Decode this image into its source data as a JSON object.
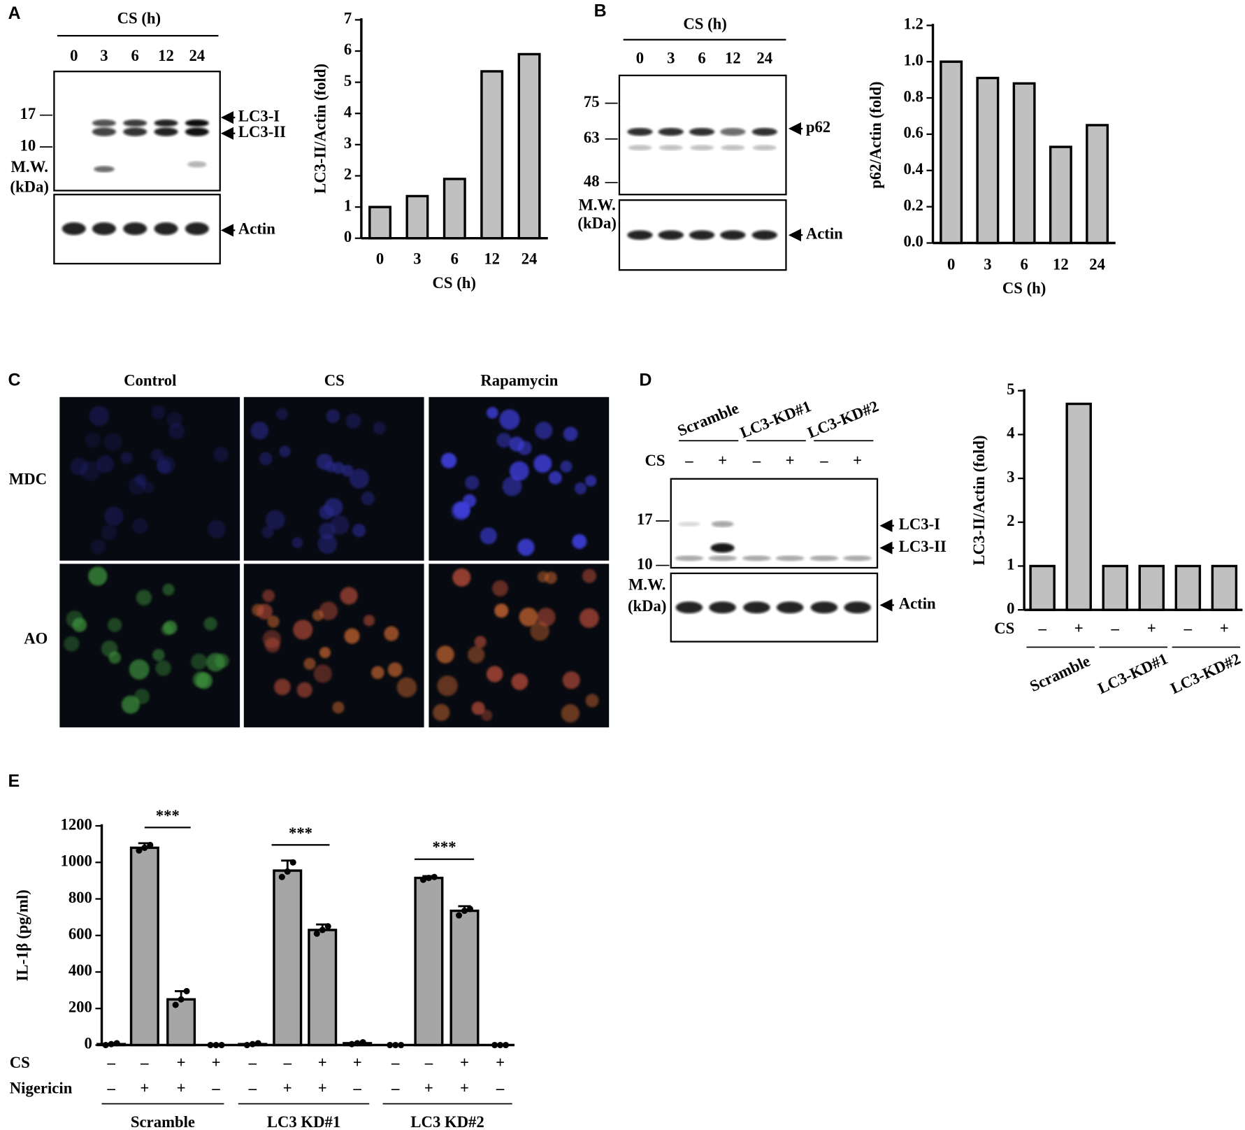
{
  "panels": {
    "a": "A",
    "b": "B",
    "c": "C",
    "d": "D",
    "e": "E"
  },
  "blot_a": {
    "header": "CS (h)",
    "lanes": [
      "0",
      "3",
      "6",
      "12",
      "24"
    ],
    "mw": [
      "17",
      "10"
    ],
    "mw_title": [
      "M.W.",
      "(kDa)"
    ],
    "bands": [
      "LC3-I",
      "LC3-II",
      "Actin"
    ]
  },
  "blot_b": {
    "header": "CS (h)",
    "lanes": [
      "0",
      "3",
      "6",
      "12",
      "24"
    ],
    "mw": [
      "75",
      "63",
      "48"
    ],
    "mw_title": [
      "M.W.",
      "(kDa)"
    ],
    "bands": [
      "p62",
      "Actin"
    ]
  },
  "images_c": {
    "columns": [
      "Control",
      "CS",
      "Rapamycin"
    ],
    "rows": [
      "MDC",
      "AO"
    ]
  },
  "blot_d": {
    "groups": [
      "Scramble",
      "LC3-KD#1",
      "LC3-KD#2"
    ],
    "row_label": "CS",
    "signs": [
      "–",
      "+",
      "–",
      "+",
      "–",
      "+"
    ],
    "mw": [
      "17",
      "10"
    ],
    "mw_title": [
      "M.W.",
      "(kDa)"
    ],
    "bands": [
      "LC3-I",
      "LC3-II",
      "Actin"
    ]
  },
  "chart_data": [
    {
      "type": "bar",
      "categories": [
        "0",
        "3",
        "6",
        "12",
        "24"
      ],
      "values": [
        1,
        1.35,
        1.9,
        5.35,
        5.9
      ],
      "color": "#c0c0c0",
      "ylim": [
        0,
        7
      ],
      "yticks": [
        0,
        1,
        2,
        3,
        4,
        5,
        6,
        7
      ],
      "y_label": "LC3-II/Actin (fold)",
      "x_label": "CS (h)"
    },
    {
      "type": "bar",
      "categories": [
        "0",
        "3",
        "6",
        "12",
        "24"
      ],
      "values": [
        1.0,
        0.91,
        0.88,
        0.53,
        0.65
      ],
      "color": "#c0c0c0",
      "ylim": [
        0,
        1.2
      ],
      "yticks": [
        {
          "value": 0,
          "label": "0.0"
        },
        0.2,
        0.4,
        0.6,
        0.8,
        {
          "value": 1,
          "label": "1.0"
        },
        1.2
      ],
      "y_label": "p62/Actin (fold)",
      "x_label": "CS (h)"
    },
    {
      "type": "bar",
      "categories": [
        "–",
        "+",
        "–",
        "+",
        "–",
        "+"
      ],
      "values": [
        1,
        4.7,
        1,
        1,
        1,
        1
      ],
      "color": "#c0c0c0",
      "ylim": [
        0,
        5
      ],
      "yticks": [
        0,
        1,
        2,
        3,
        4,
        5
      ],
      "y_label": "LC3-II/Actin (fold)",
      "row_label": "CS",
      "groups": [
        "Scramble",
        "LC3-KD#1",
        "LC3-KD#2"
      ]
    },
    {
      "type": "bar",
      "categories": [
        null,
        null,
        null,
        null,
        null,
        null,
        null,
        null,
        null,
        null,
        null,
        null
      ],
      "values": [
        5,
        1080,
        250,
        0,
        5,
        955,
        630,
        10,
        0,
        915,
        735,
        0
      ],
      "errors": [
        0,
        25,
        45,
        0,
        0,
        55,
        30,
        0,
        0,
        10,
        25,
        0
      ],
      "points": [
        [
          0,
          5,
          10
        ],
        [
          1065,
          1080,
          1095
        ],
        [
          220,
          250,
          295
        ],
        [
          0,
          0,
          0
        ],
        [
          0,
          5,
          10
        ],
        [
          920,
          950,
          1000
        ],
        [
          610,
          630,
          650
        ],
        [
          5,
          10,
          15
        ],
        [
          0,
          0,
          0
        ],
        [
          905,
          915,
          920
        ],
        [
          710,
          735,
          745
        ],
        [
          0,
          0,
          0
        ]
      ],
      "color": "#a6a6a6",
      "ylim": [
        0,
        1200
      ],
      "yticks": [
        0,
        200,
        400,
        600,
        800,
        1000,
        1200
      ],
      "y_label": "IL-1β (pg/ml)",
      "rows": [
        {
          "name": "CS",
          "values": [
            "–",
            "–",
            "+",
            "+",
            "–",
            "–",
            "+",
            "+",
            "–",
            "–",
            "+",
            "+"
          ]
        },
        {
          "name": "Nigericin",
          "values": [
            "–",
            "+",
            "+",
            "–",
            "–",
            "+",
            "+",
            "–",
            "–",
            "+",
            "+",
            "–"
          ]
        }
      ],
      "groups": [
        "Scramble",
        "LC3 KD#1",
        "LC3 KD#2"
      ],
      "annotations": [
        "***",
        "***",
        "***"
      ]
    }
  ]
}
